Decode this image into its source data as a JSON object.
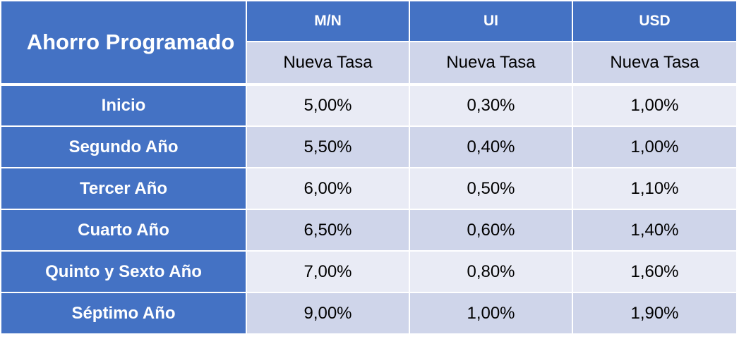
{
  "table": {
    "title": "Ahorro Programado",
    "currencies": [
      "M/N",
      "UI",
      "USD"
    ],
    "subheader": [
      "Nueva Tasa",
      "Nueva Tasa",
      "Nueva Tasa"
    ],
    "rows": [
      {
        "label": "Inicio",
        "values": [
          "5,00%",
          "0,30%",
          "1,00%"
        ]
      },
      {
        "label": "Segundo Año",
        "values": [
          "5,50%",
          "0,40%",
          "1,00%"
        ]
      },
      {
        "label": "Tercer Año",
        "values": [
          "6,00%",
          "0,50%",
          "1,10%"
        ]
      },
      {
        "label": "Cuarto Año",
        "values": [
          "6,50%",
          "0,60%",
          "1,40%"
        ]
      },
      {
        "label": "Quinto y Sexto Año",
        "values": [
          "7,00%",
          "0,80%",
          "1,60%"
        ]
      },
      {
        "label": "Séptimo Año",
        "values": [
          "9,00%",
          "1,00%",
          "1,90%"
        ]
      }
    ]
  },
  "colors": {
    "header_blue": "#4472c4",
    "row_light": "#e9ebf5",
    "row_dark": "#cfd5ea"
  }
}
